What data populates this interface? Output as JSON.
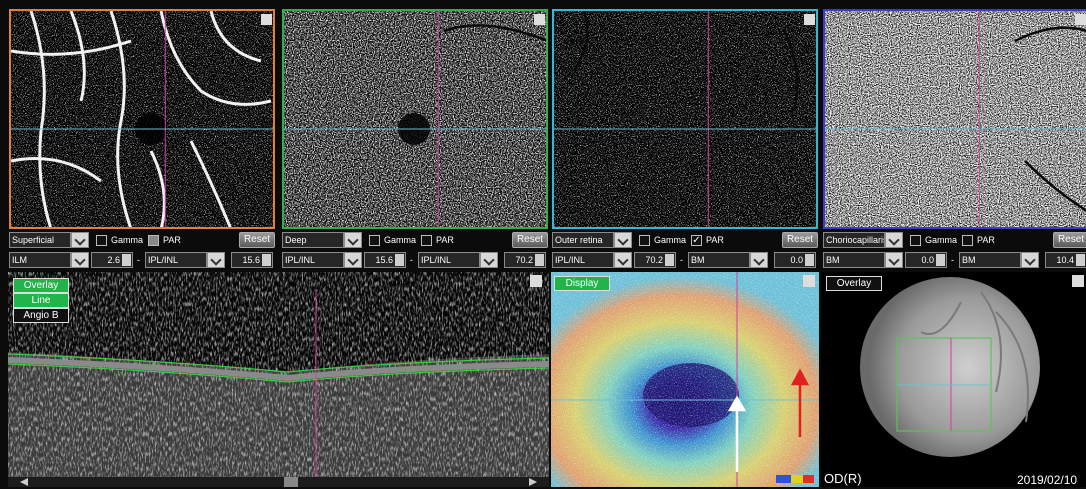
{
  "panels": [
    {
      "layer": "Superficial",
      "gamma": "Gamma",
      "par": "PAR",
      "par_checked": false,
      "reset": "Reset",
      "upper": "ILM",
      "upper_offset": "2.6",
      "separator": "-",
      "lower": "IPL/INL",
      "lower_offset": "15.6",
      "border_color": "#e0803a"
    },
    {
      "layer": "Deep",
      "gamma": "Gamma",
      "par": "PAR",
      "par_checked": false,
      "reset": "Reset",
      "upper": "IPL/INL",
      "upper_offset": "15.6",
      "separator": "-",
      "lower": "IPL/INL",
      "lower_offset": "70.2",
      "border_color": "#2fb04a"
    },
    {
      "layer": "Outer retina",
      "gamma": "Gamma",
      "par": "PAR",
      "par_checked": true,
      "reset": "Reset",
      "upper": "IPL/INL",
      "upper_offset": "70.2",
      "separator": "-",
      "lower": "BM",
      "lower_offset": "0.0",
      "border_color": "#33b9d6"
    },
    {
      "layer": "Choriocapillaris",
      "gamma": "Gamma",
      "par": "PAR",
      "par_checked": false,
      "reset": "Reset",
      "upper": "BM",
      "upper_offset": "0.0",
      "separator": "-",
      "lower": "BM",
      "lower_offset": "10.4",
      "border_color": "#3b3bcf"
    }
  ],
  "bscan": {
    "buttons": [
      "Overlay",
      "Line",
      "Angio B"
    ]
  },
  "map": {
    "button": "Display"
  },
  "fundus": {
    "button": "Overlay",
    "eye": "OD(R)",
    "date": "2019/02/10"
  }
}
